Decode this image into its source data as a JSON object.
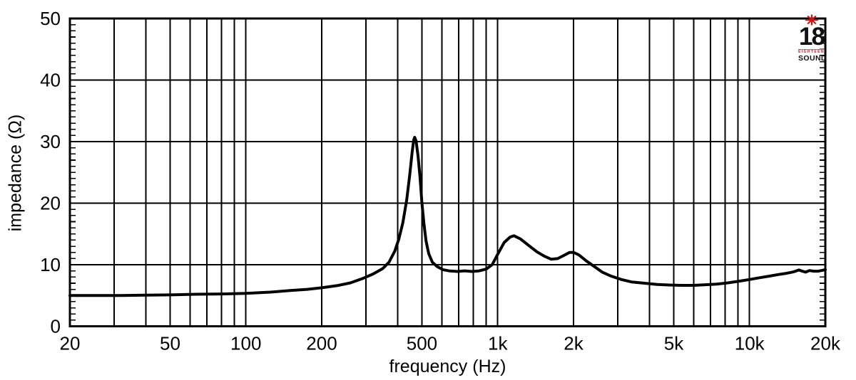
{
  "window": {
    "background": "#ffffff"
  },
  "logo": {
    "star_icon": "eight-point-star",
    "number": "18",
    "line1": "EIGHTEEN",
    "line2": "SOUND",
    "red": "#cc1414",
    "black": "#111111"
  },
  "chart_data": {
    "type": "line",
    "title": "",
    "xlabel": "frequency (Hz)",
    "ylabel": "impedance (Ω)",
    "x_scale": "log",
    "xlim": [
      20,
      20000
    ],
    "ylim": [
      0,
      50
    ],
    "grid": true,
    "grid_color": "#000000",
    "line_color": "#000000",
    "legend": "none",
    "x_ticks": [
      {
        "v": 20,
        "label": "20"
      },
      {
        "v": 50,
        "label": "50"
      },
      {
        "v": 100,
        "label": "100"
      },
      {
        "v": 200,
        "label": "200"
      },
      {
        "v": 500,
        "label": "500"
      },
      {
        "v": 1000,
        "label": "1k"
      },
      {
        "v": 2000,
        "label": "2k"
      },
      {
        "v": 5000,
        "label": "5k"
      },
      {
        "v": 10000,
        "label": "10k"
      },
      {
        "v": 20000,
        "label": "20k"
      }
    ],
    "x_gridlines": [
      30,
      40,
      50,
      60,
      70,
      80,
      90,
      100,
      200,
      300,
      400,
      500,
      600,
      700,
      800,
      900,
      1000,
      2000,
      3000,
      4000,
      5000,
      6000,
      7000,
      8000,
      9000,
      10000,
      20000
    ],
    "y_ticks": [
      {
        "v": 0,
        "label": "0"
      },
      {
        "v": 10,
        "label": "10"
      },
      {
        "v": 20,
        "label": "20"
      },
      {
        "v": 30,
        "label": "30"
      },
      {
        "v": 40,
        "label": "40"
      },
      {
        "v": 50,
        "label": "50"
      }
    ],
    "y_minor_step": 1,
    "series": [
      {
        "name": "impedance",
        "points": [
          [
            20,
            5.0
          ],
          [
            25,
            5.0
          ],
          [
            32,
            5.0
          ],
          [
            40,
            5.05
          ],
          [
            50,
            5.1
          ],
          [
            63,
            5.2
          ],
          [
            80,
            5.25
          ],
          [
            100,
            5.35
          ],
          [
            125,
            5.55
          ],
          [
            150,
            5.8
          ],
          [
            175,
            6.0
          ],
          [
            200,
            6.25
          ],
          [
            230,
            6.6
          ],
          [
            260,
            7.05
          ],
          [
            290,
            7.75
          ],
          [
            320,
            8.5
          ],
          [
            350,
            9.4
          ],
          [
            370,
            10.4
          ],
          [
            390,
            12.2
          ],
          [
            405,
            14.2
          ],
          [
            420,
            16.8
          ],
          [
            435,
            20.5
          ],
          [
            447,
            24.5
          ],
          [
            457,
            28.2
          ],
          [
            464,
            30.3
          ],
          [
            468,
            30.7
          ],
          [
            474,
            30.1
          ],
          [
            482,
            27.8
          ],
          [
            491,
            24.4
          ],
          [
            500,
            20.0
          ],
          [
            509,
            16.8
          ],
          [
            519,
            13.9
          ],
          [
            532,
            11.8
          ],
          [
            550,
            10.4
          ],
          [
            575,
            9.7
          ],
          [
            605,
            9.2
          ],
          [
            640,
            9.0
          ],
          [
            690,
            8.9
          ],
          [
            740,
            9.0
          ],
          [
            790,
            8.9
          ],
          [
            845,
            9.0
          ],
          [
            900,
            9.3
          ],
          [
            950,
            10.0
          ],
          [
            1000,
            11.7
          ],
          [
            1060,
            13.6
          ],
          [
            1120,
            14.5
          ],
          [
            1160,
            14.7
          ],
          [
            1230,
            14.2
          ],
          [
            1330,
            13.1
          ],
          [
            1430,
            12.1
          ],
          [
            1530,
            11.4
          ],
          [
            1630,
            10.9
          ],
          [
            1730,
            11.0
          ],
          [
            1830,
            11.5
          ],
          [
            1930,
            12.0
          ],
          [
            2000,
            12.0
          ],
          [
            2100,
            11.6
          ],
          [
            2250,
            10.6
          ],
          [
            2400,
            9.8
          ],
          [
            2600,
            8.8
          ],
          [
            2800,
            8.2
          ],
          [
            3100,
            7.6
          ],
          [
            3400,
            7.2
          ],
          [
            3800,
            7.0
          ],
          [
            4300,
            6.8
          ],
          [
            4800,
            6.7
          ],
          [
            5400,
            6.65
          ],
          [
            6000,
            6.65
          ],
          [
            6700,
            6.75
          ],
          [
            7400,
            6.85
          ],
          [
            8200,
            7.05
          ],
          [
            9000,
            7.3
          ],
          [
            10000,
            7.6
          ],
          [
            11000,
            7.9
          ],
          [
            12000,
            8.15
          ],
          [
            13000,
            8.4
          ],
          [
            14000,
            8.6
          ],
          [
            15000,
            8.85
          ],
          [
            15700,
            9.15
          ],
          [
            16200,
            8.95
          ],
          [
            16700,
            8.8
          ],
          [
            17300,
            9.05
          ],
          [
            18000,
            8.95
          ],
          [
            18700,
            8.95
          ],
          [
            19300,
            9.05
          ],
          [
            20000,
            9.2
          ]
        ]
      }
    ]
  }
}
